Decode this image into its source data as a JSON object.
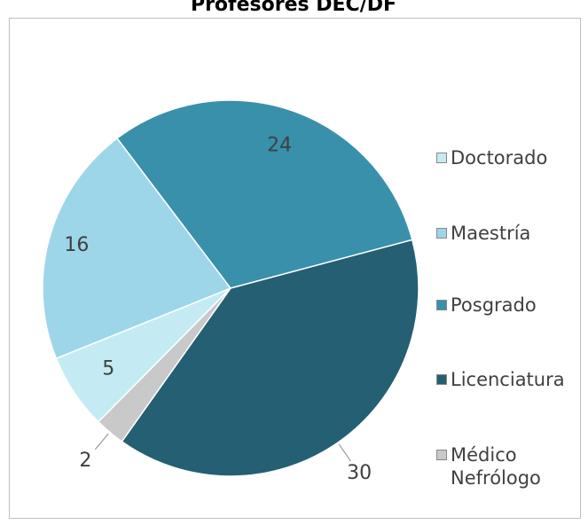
{
  "chart_data": {
    "type": "pie",
    "title": "Profesores DEC/DF",
    "categories": [
      "Doctorado",
      "Maestría",
      "Posgrado",
      "Licenciatura",
      "Médico Nefrólogo"
    ],
    "values": [
      5,
      16,
      24,
      30,
      2
    ],
    "colors": [
      "#c4ebf3",
      "#9dd6e8",
      "#3990ab",
      "#255f73",
      "#c9c9c9"
    ],
    "legend": "right"
  }
}
